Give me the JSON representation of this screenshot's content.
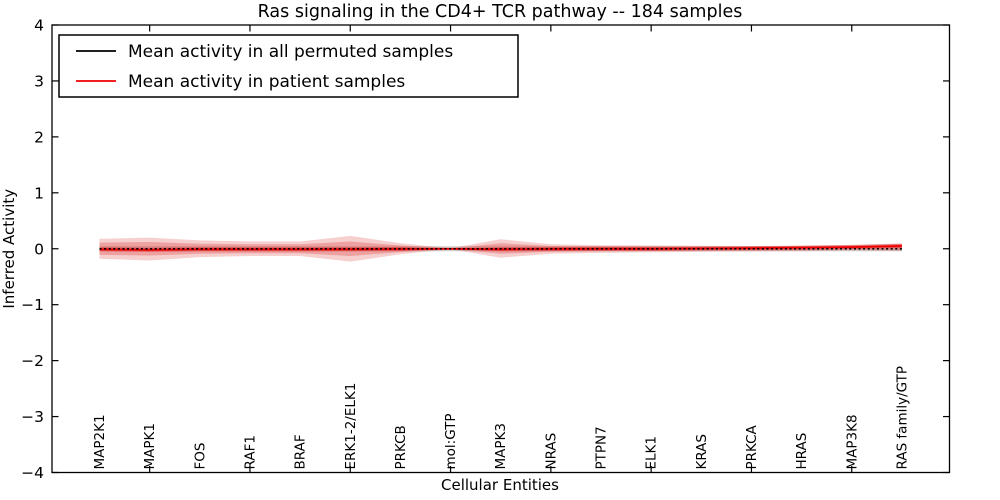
{
  "figure": {
    "background": "#ffffff",
    "frame_color": "#000000"
  },
  "chart_data": {
    "type": "line",
    "title": "Ras signaling in the CD4+ TCR pathway -- 184 samples",
    "xlabel": "Cellular Entities",
    "ylabel": "Inferred Activity",
    "ylim": [
      -4,
      4
    ],
    "yticks": [
      -4,
      -3,
      -2,
      -1,
      0,
      1,
      2,
      3,
      4
    ],
    "xtick_at_category_indices": [
      1,
      3,
      5,
      7,
      9,
      11,
      13,
      15
    ],
    "grid": false,
    "legend_position": "upper left",
    "categories": [
      "MAP2K1",
      "MAPK1",
      "FOS",
      "RAF1",
      "BRAF",
      "ERK1-2/ELK1",
      "PRKCB",
      "mol:GTP",
      "MAPK3",
      "NRAS",
      "PTPN7",
      "ELK1",
      "KRAS",
      "PRKCA",
      "HRAS",
      "MAP3K8",
      "RAS family/GTP"
    ],
    "series": [
      {
        "name": "Mean activity in all permuted samples",
        "color": "#000000",
        "plot_linestyle": "dotted",
        "values": [
          0,
          0,
          0,
          0,
          0,
          0,
          0,
          0,
          0,
          0,
          0,
          0,
          0,
          0,
          0,
          0,
          0
        ]
      },
      {
        "name": "Mean activity in patient samples",
        "color": "#ee0000",
        "plot_linestyle": "solid",
        "values": [
          -0.01,
          -0.02,
          -0.01,
          -0.01,
          -0.01,
          -0.01,
          -0.005,
          0,
          -0.01,
          -0.005,
          0,
          0,
          0.005,
          0.01,
          0.02,
          0.03,
          0.05
        ]
      }
    ],
    "bands": [
      {
        "name": "permuted-samples-std",
        "color": "#888888",
        "opacity": 0.4,
        "upper": [
          0.045,
          0.045,
          0.045,
          0.045,
          0.045,
          0.045,
          0.045,
          0.045,
          0.045,
          0.045,
          0.045,
          0.045,
          0.045,
          0.045,
          0.045,
          0.045,
          0.045
        ],
        "lower": [
          -0.045,
          -0.045,
          -0.045,
          -0.045,
          -0.045,
          -0.045,
          -0.045,
          -0.045,
          -0.045,
          -0.045,
          -0.045,
          -0.045,
          -0.045,
          -0.045,
          -0.045,
          -0.045,
          -0.045
        ]
      },
      {
        "name": "patient-samples-std-outer",
        "color": "#dd4444",
        "opacity": 0.26,
        "upper": [
          0.18,
          0.2,
          0.15,
          0.13,
          0.13,
          0.23,
          0.1,
          0.01,
          0.17,
          0.08,
          0.065,
          0.06,
          0.055,
          0.05,
          0.055,
          0.07,
          0.1
        ],
        "lower": [
          -0.18,
          -0.21,
          -0.15,
          -0.13,
          -0.13,
          -0.23,
          -0.1,
          -0.01,
          -0.16,
          -0.09,
          -0.075,
          -0.065,
          -0.055,
          -0.05,
          -0.045,
          -0.03,
          -0.04
        ]
      },
      {
        "name": "patient-samples-std-inner",
        "color": "#dd4444",
        "opacity": 0.33,
        "upper": [
          0.11,
          0.12,
          0.09,
          0.08,
          0.08,
          0.13,
          0.06,
          0.005,
          0.1,
          0.05,
          0.04,
          0.035,
          0.03,
          0.03,
          0.035,
          0.05,
          0.08
        ],
        "lower": [
          -0.11,
          -0.12,
          -0.09,
          -0.08,
          -0.08,
          -0.13,
          -0.06,
          -0.005,
          -0.09,
          -0.055,
          -0.045,
          -0.04,
          -0.03,
          -0.03,
          -0.025,
          -0.01,
          -0.02
        ]
      },
      {
        "name": "patient-samples-sem",
        "color": "#dd2222",
        "opacity": 0.5,
        "upper": [
          0.025,
          0.015,
          0.025,
          0.025,
          0.025,
          0.025,
          0.03,
          0.005,
          0.025,
          0.03,
          0.035,
          0.035,
          0.04,
          0.045,
          0.055,
          0.065,
          0.085
        ],
        "lower": [
          -0.045,
          -0.055,
          -0.045,
          -0.045,
          -0.045,
          -0.045,
          -0.04,
          -0.005,
          -0.045,
          -0.04,
          -0.035,
          -0.035,
          -0.03,
          -0.025,
          -0.015,
          -0.005,
          0.015
        ]
      }
    ]
  }
}
